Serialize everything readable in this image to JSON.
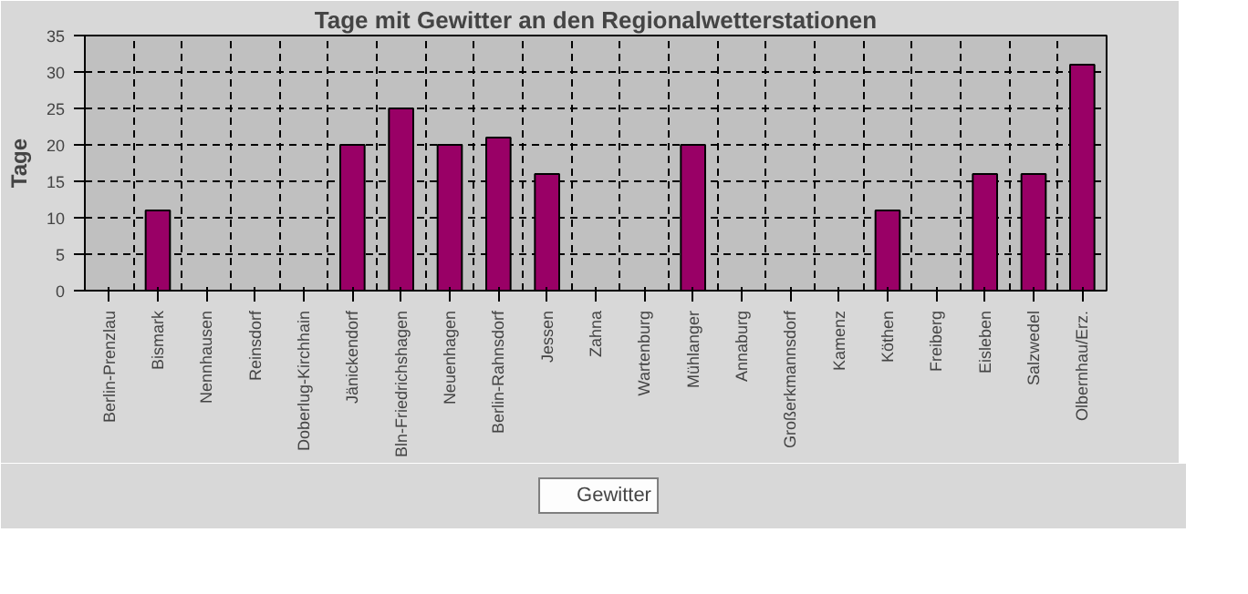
{
  "chart_data": {
    "type": "bar",
    "title": "Tage mit Gewitter an den Regionalwetterstationen",
    "ylabel": "Tage",
    "categories": [
      "Berlin-Prenzlau",
      "Bismark",
      "Nennhausen",
      "Reinsdorf",
      "Doberlug-Kirchhain",
      "Jänickendorf",
      "Bln-Friedrichshagen",
      "Neuenhagen",
      "Berlin-Rahnsdorf",
      "Jessen",
      "Zahna",
      "Wartenburg",
      "Mühlanger",
      "Annaburg",
      "Großerkmannsdorf",
      "Kamenz",
      "Köthen",
      "Freiberg",
      "Eisleben",
      "Salzwedel",
      "Olbernhau/Erz."
    ],
    "series": [
      {
        "name": "Gewitter",
        "color": "#990066",
        "values": [
          0,
          11,
          0,
          0,
          0,
          20,
          25,
          20,
          21,
          16,
          0,
          0,
          20,
          0,
          0,
          0,
          11,
          0,
          16,
          16,
          31
        ]
      }
    ],
    "ylim": [
      0,
      35
    ],
    "yticks": [
      0,
      5,
      10,
      15,
      20,
      25,
      30,
      35
    ],
    "grid": true,
    "legend": "bottom"
  }
}
